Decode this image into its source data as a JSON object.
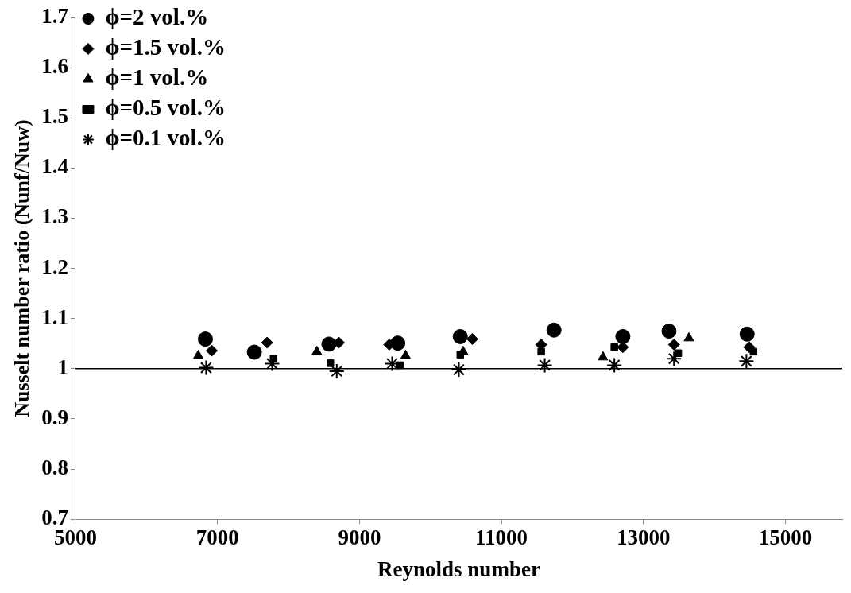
{
  "chart_data": {
    "type": "scatter",
    "xlabel": "Reynolds number",
    "ylabel": "Nusselt number ratio (Nunf/Nuw)",
    "xlim": [
      5000,
      15800
    ],
    "xticks": [
      5000,
      7000,
      9000,
      11000,
      13000,
      15000
    ],
    "ylim": [
      0.7,
      1.7
    ],
    "yticks": [
      0.7,
      0.8,
      0.9,
      1,
      1.1,
      1.2,
      1.3,
      1.4,
      1.5,
      1.6,
      1.7
    ],
    "grid": false,
    "legend": "top left",
    "ref_lines": [
      {
        "axis": "y",
        "value": 1,
        "color": "#000000"
      }
    ],
    "series": [
      {
        "name": "ϕ=2 vol.%",
        "color": "#000000",
        "marker": "circle",
        "x": [
          6830,
          7520,
          8570,
          9540,
          10420,
          11740,
          12710,
          13360,
          14460
        ],
        "values": [
          1.059,
          1.033,
          1.049,
          1.051,
          1.064,
          1.077,
          1.064,
          1.075,
          1.069
        ]
      },
      {
        "name": "ϕ=1.5 vol.%",
        "color": "#000000",
        "marker": "diamond",
        "x": [
          6920,
          7700,
          8710,
          9420,
          10590,
          11560,
          12710,
          13430,
          14490
        ],
        "values": [
          1.036,
          1.052,
          1.052,
          1.048,
          1.059,
          1.048,
          1.043,
          1.048,
          1.043
        ]
      },
      {
        "name": "ϕ=1 vol.%",
        "color": "#000000",
        "marker": "triangle",
        "x": [
          6730,
          8400,
          9650,
          10460,
          12430,
          13640
        ],
        "values": [
          1.026,
          1.034,
          1.026,
          1.034,
          1.023,
          1.061
        ]
      },
      {
        "name": "ϕ=0.5 vol.%",
        "color": "#000000",
        "marker": "square",
        "x": [
          7790,
          8590,
          9570,
          10420,
          11560,
          12590,
          13490,
          14550
        ],
        "values": [
          1.02,
          1.011,
          1.007,
          1.028,
          1.034,
          1.043,
          1.031,
          1.034
        ]
      },
      {
        "name": "ϕ=0.1 vol.%",
        "color": "#000000",
        "marker": "cross",
        "x": [
          6840,
          7770,
          8680,
          9460,
          10400,
          11610,
          12590,
          13430,
          14450
        ],
        "values": [
          1.002,
          1.01,
          0.995,
          1.01,
          0.998,
          1.007,
          1.007,
          1.02,
          1.015
        ]
      }
    ]
  }
}
